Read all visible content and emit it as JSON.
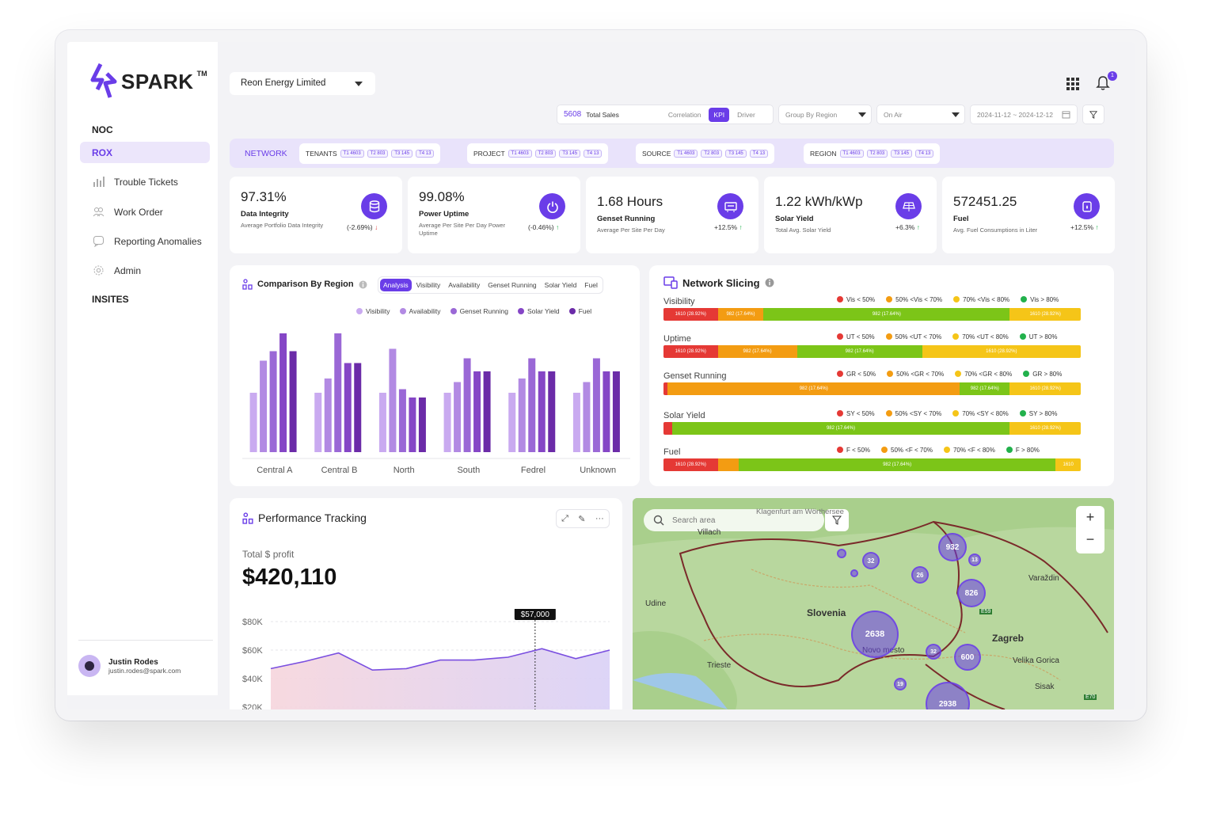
{
  "brand": {
    "name": "SPARK",
    "tm": "TM"
  },
  "sidebar": {
    "section_noc": "NOC",
    "active_item": "ROX",
    "items": [
      {
        "label": "Trouble Tickets",
        "icon": "bar-chart-icon"
      },
      {
        "label": "Work Order",
        "icon": "users-icon"
      },
      {
        "label": "Reporting Anomalies",
        "icon": "chat-icon"
      },
      {
        "label": "Admin",
        "icon": "gear-icon"
      }
    ],
    "section_insites": "INSITES"
  },
  "user": {
    "name": "Justin Rodes",
    "email": "justin.rodes@spark.com"
  },
  "header": {
    "company": "Reon Energy Limited",
    "notification_count": "1"
  },
  "toolbar": {
    "total_sales_value": "5608",
    "total_sales_label": "Total Sales",
    "modes": [
      "Correlation",
      "KPI",
      "Driver"
    ],
    "active_mode": "KPI",
    "group_by": "Group By Region",
    "status": "On Air",
    "date_range": "2024-11-12 ~ 2024-12-12"
  },
  "filters": {
    "network_label": "NETWORK",
    "groups": [
      {
        "label": "TENANTS",
        "pills": [
          "T1 4603",
          "T2 803",
          "T3 145",
          "T4 13"
        ]
      },
      {
        "label": "PROJECT",
        "pills": [
          "T1 4603",
          "T2 803",
          "T3 145",
          "T4 13"
        ]
      },
      {
        "label": "SOURCE",
        "pills": [
          "T1 4603",
          "T2 803",
          "T3 145",
          "T4 13"
        ]
      },
      {
        "label": "REGION",
        "pills": [
          "T1 4603",
          "T2 803",
          "T3 145",
          "T4 13"
        ]
      }
    ]
  },
  "kpis": [
    {
      "value": "97.31%",
      "title": "Data Integrity",
      "sub": "Average Portfolio Data Integrity",
      "change": "(-2.69%)",
      "dir": "↓",
      "icon": "database-icon"
    },
    {
      "value": "99.08%",
      "title": "Power Uptime",
      "sub": "Average Per Site Per Day Power Uptime",
      "change": "(-0.46%)",
      "dir": "↑",
      "icon": "power-icon"
    },
    {
      "value": "1.68 Hours",
      "title": "Genset Running",
      "sub": "Average Per Site Per Day",
      "change": "+12.5%",
      "dir": "↑",
      "icon": "generator-icon"
    },
    {
      "value": "1.22 kWh/kWp",
      "title": "Solar Yield",
      "sub": "Total Avg. Solar Yield",
      "change": "+6.3%",
      "dir": "↑",
      "icon": "solar-panel-icon"
    },
    {
      "value": "572451.25",
      "title": "Fuel",
      "sub": "Avg. Fuel Consumptions in Liter",
      "change": "+12.5%",
      "dir": "↑",
      "icon": "fuel-icon"
    }
  ],
  "comparison": {
    "title": "Comparison By Region",
    "chips": [
      "Analysis",
      "Visibility",
      "Availability",
      "Genset Running",
      "Solar Yield",
      "Fuel"
    ],
    "active_chip": "Analysis",
    "colors": {
      "Visibility": "#c9aaf0",
      "Availability": "#b28ae3",
      "Genset Running": "#9a68d6",
      "Solar Yield": "#8546c6",
      "Fuel": "#6b2ba8"
    }
  },
  "chart_data": {
    "type": "bar",
    "categories": [
      "Central A",
      "Central B",
      "North",
      "South",
      "Fedrel",
      "Unknown"
    ],
    "series": [
      {
        "name": "Visibility",
        "values": [
          50,
          50,
          50,
          50,
          50,
          50
        ]
      },
      {
        "name": "Availability",
        "values": [
          77,
          62,
          87,
          59,
          62,
          59
        ]
      },
      {
        "name": "Genset Running",
        "values": [
          85,
          100,
          53,
          79,
          79,
          79
        ]
      },
      {
        "name": "Solar Yield",
        "values": [
          100,
          75,
          46,
          68,
          68,
          68
        ]
      },
      {
        "name": "Fuel",
        "values": [
          85,
          75,
          46,
          68,
          68,
          68
        ]
      }
    ],
    "ylim": [
      0,
      100
    ]
  },
  "network_slicing": {
    "title": "Network Slicing",
    "rows": [
      {
        "label": "Visibility",
        "legend": [
          "Vis < 50%",
          "50% <Vis < 70%",
          "70% <Vis < 80%",
          "Vis > 80%"
        ],
        "segments": [
          {
            "pct": 13,
            "color": "#e53935",
            "text": "1610 (28.92%)"
          },
          {
            "pct": 11,
            "color": "#f39c12",
            "text": "982 (17.64%)"
          },
          {
            "pct": 59,
            "color": "#7cc518",
            "text": "982 (17.64%)"
          },
          {
            "pct": 17,
            "color": "#f5c518",
            "text": "1610 (28.92%)"
          }
        ]
      },
      {
        "label": "Uptime",
        "legend": [
          "UT < 50%",
          "50% <UT < 70%",
          "70% <UT < 80%",
          "UT > 80%"
        ],
        "segments": [
          {
            "pct": 13,
            "color": "#e53935",
            "text": "1610 (28.92%)"
          },
          {
            "pct": 19,
            "color": "#f39c12",
            "text": "982 (17.64%)"
          },
          {
            "pct": 30,
            "color": "#7cc518",
            "text": "982 (17.64%)"
          },
          {
            "pct": 38,
            "color": "#f5c518",
            "text": "1610 (28.92%)"
          }
        ]
      },
      {
        "label": "Genset Running",
        "legend": [
          "GR < 50%",
          "50% <GR < 70%",
          "70% <GR < 80%",
          "GR > 80%"
        ],
        "segments": [
          {
            "pct": 1,
            "color": "#e53935",
            "text": ""
          },
          {
            "pct": 70,
            "color": "#f39c12",
            "text": "982 (17.64%)"
          },
          {
            "pct": 12,
            "color": "#7cc518",
            "text": "982 (17.64%)"
          },
          {
            "pct": 17,
            "color": "#f5c518",
            "text": "1610 (28.92%)"
          }
        ]
      },
      {
        "label": "Solar Yield",
        "legend": [
          "SY < 50%",
          "50% <SY < 70%",
          "70% <SY < 80%",
          "SY > 80%"
        ],
        "segments": [
          {
            "pct": 2,
            "color": "#e53935",
            "text": ""
          },
          {
            "pct": 81,
            "color": "#7cc518",
            "text": "982 (17.64%)"
          },
          {
            "pct": 17,
            "color": "#f5c518",
            "text": "1610 (28.92%)"
          }
        ]
      },
      {
        "label": "Fuel",
        "legend": [
          "F < 50%",
          "50% <F < 70%",
          "70% <F < 80%",
          "F > 80%"
        ],
        "segments": [
          {
            "pct": 13,
            "color": "#e53935",
            "text": "1610 (28.92%)"
          },
          {
            "pct": 5,
            "color": "#f39c12",
            "text": ""
          },
          {
            "pct": 76,
            "color": "#7cc518",
            "text": "982 (17.64%)"
          },
          {
            "pct": 6,
            "color": "#f5c518",
            "text": "1610"
          }
        ]
      }
    ],
    "legend_colors": [
      "#e53935",
      "#f39c12",
      "#f5c518",
      "#22b14c"
    ]
  },
  "performance": {
    "title": "Performance Tracking",
    "profit_label": "Total $ profit",
    "profit_value": "$420,110",
    "y_ticks": [
      "$80K",
      "$60K",
      "$40K",
      "$20K"
    ],
    "tooltip": "$57,000",
    "line": [
      47,
      52,
      58,
      46,
      47,
      53,
      53,
      55,
      61,
      54,
      60
    ]
  },
  "map": {
    "search_placeholder": "Search area",
    "places": [
      "Klagenfurt am Wörthersee",
      "Villach",
      "Udine",
      "Slovenia",
      "Novo mesto",
      "Trieste",
      "Zagreb",
      "Velika Gorica",
      "Varaždin",
      "Sisak",
      "E59",
      "E70"
    ],
    "clusters": [
      "932",
      "826",
      "2638",
      "600",
      "2938",
      "32",
      "26",
      "13",
      "32",
      "19"
    ]
  }
}
